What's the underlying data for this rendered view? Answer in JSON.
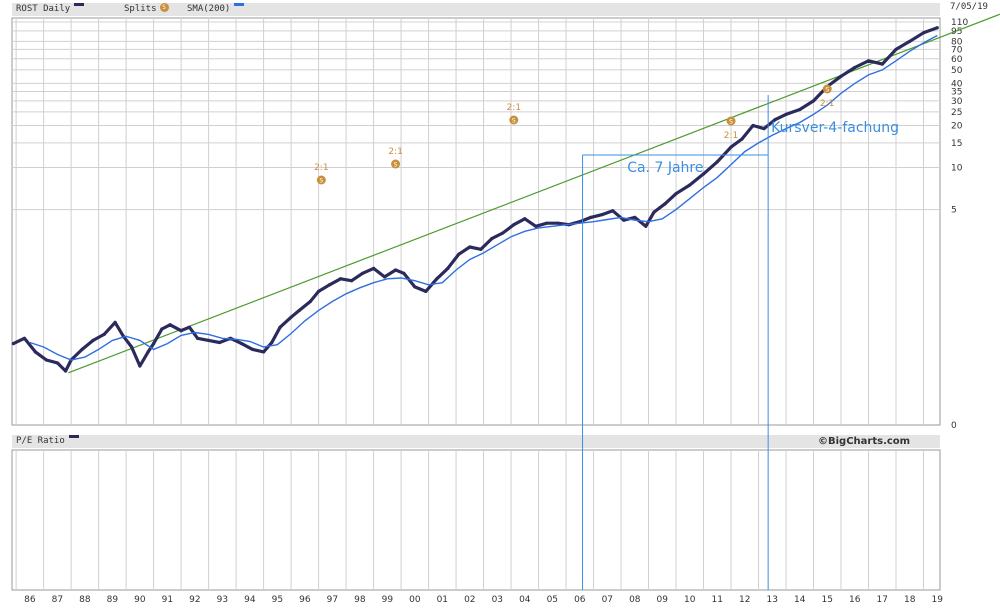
{
  "header": {
    "symbol_label": "ROST Daily",
    "splits_label": "Splits",
    "sma_label": "SMA(200)",
    "split_icon_glyph": "S",
    "date": "7/05/19"
  },
  "lower_panel": {
    "label": "P/E Ratio",
    "brand": "©BigCharts.com"
  },
  "colors": {
    "price": "#2b2a5c",
    "sma": "#2f6fe0",
    "trendline": "#4b9a2a",
    "annotation": "#3a8fe0",
    "split": "#c8903c"
  },
  "chart_data": {
    "type": "line",
    "title": "ROST Daily",
    "x_ticks": [
      "86",
      "87",
      "88",
      "89",
      "90",
      "91",
      "92",
      "93",
      "94",
      "95",
      "96",
      "97",
      "98",
      "99",
      "00",
      "01",
      "02",
      "03",
      "04",
      "05",
      "06",
      "07",
      "08",
      "09",
      "10",
      "11",
      "12",
      "13",
      "14",
      "15",
      "16",
      "17",
      "18",
      "19"
    ],
    "y_tick_labels": [
      "110",
      "95",
      "80",
      "70",
      "60",
      "50",
      "40",
      "35",
      "30",
      "25",
      "20",
      "15",
      "10",
      "5",
      "0"
    ],
    "y_scale": "log",
    "xlim": [
      1985.85,
      2019.6
    ],
    "grid": true,
    "series": [
      {
        "name": "ROST Daily",
        "x": [
          1985.9,
          1986.3,
          1986.7,
          1987.1,
          1987.5,
          1987.8,
          1988.0,
          1988.4,
          1988.8,
          1989.2,
          1989.6,
          1989.9,
          1990.2,
          1990.5,
          1990.8,
          1991.0,
          1991.3,
          1991.6,
          1992.0,
          1992.3,
          1992.6,
          1993.0,
          1993.4,
          1993.8,
          1994.2,
          1994.6,
          1995.0,
          1995.3,
          1995.6,
          1996.0,
          1996.3,
          1996.7,
          1997.0,
          1997.4,
          1997.8,
          1998.2,
          1998.6,
          1999.0,
          1999.4,
          1999.8,
          2000.1,
          2000.5,
          2000.9,
          2001.3,
          2001.7,
          2002.1,
          2002.5,
          2002.9,
          2003.3,
          2003.7,
          2004.1,
          2004.5,
          2004.9,
          2005.3,
          2005.7,
          2006.1,
          2006.5,
          2006.9,
          2007.3,
          2007.7,
          2008.1,
          2008.5,
          2008.9,
          2009.2,
          2009.6,
          2010.0,
          2010.5,
          2011.0,
          2011.5,
          2012.0,
          2012.4,
          2012.8,
          2013.2,
          2013.6,
          2014.0,
          2014.5,
          2015.0,
          2015.5,
          2016.0,
          2016.5,
          2017.0,
          2017.5,
          2018.0,
          2018.5,
          2019.0,
          2019.5
        ],
        "y": [
          0.55,
          0.6,
          0.48,
          0.42,
          0.4,
          0.35,
          0.42,
          0.5,
          0.58,
          0.64,
          0.78,
          0.62,
          0.52,
          0.38,
          0.48,
          0.55,
          0.7,
          0.75,
          0.68,
          0.72,
          0.6,
          0.58,
          0.56,
          0.6,
          0.55,
          0.5,
          0.48,
          0.56,
          0.72,
          0.85,
          0.95,
          1.1,
          1.3,
          1.45,
          1.6,
          1.55,
          1.75,
          1.9,
          1.65,
          1.85,
          1.75,
          1.4,
          1.3,
          1.6,
          1.9,
          2.4,
          2.7,
          2.6,
          3.1,
          3.4,
          3.9,
          4.3,
          3.8,
          4.0,
          4.0,
          3.9,
          4.1,
          4.4,
          4.6,
          4.9,
          4.2,
          4.4,
          3.8,
          4.8,
          5.5,
          6.5,
          7.5,
          9.0,
          11.0,
          14.0,
          16.0,
          20.0,
          19.0,
          22.0,
          24.0,
          26.0,
          30.0,
          38.0,
          45.0,
          52.0,
          58.0,
          55.0,
          70.0,
          80.0,
          92.0,
          100.0
        ]
      },
      {
        "name": "SMA(200)",
        "x": [
          1986.5,
          1987.0,
          1987.5,
          1988.0,
          1988.5,
          1989.0,
          1989.5,
          1990.0,
          1990.5,
          1991.0,
          1991.5,
          1992.0,
          1992.5,
          1993.0,
          1993.5,
          1994.0,
          1994.5,
          1995.0,
          1995.5,
          1996.0,
          1996.5,
          1997.0,
          1997.5,
          1998.0,
          1998.5,
          1999.0,
          1999.5,
          2000.0,
          2000.5,
          2001.0,
          2001.5,
          2002.0,
          2002.5,
          2003.0,
          2003.5,
          2004.0,
          2004.5,
          2005.0,
          2005.5,
          2006.0,
          2006.5,
          2007.0,
          2007.5,
          2008.0,
          2008.5,
          2009.0,
          2009.5,
          2010.0,
          2010.5,
          2011.0,
          2011.5,
          2012.0,
          2012.5,
          2013.0,
          2013.5,
          2014.0,
          2014.5,
          2015.0,
          2015.5,
          2016.0,
          2016.5,
          2017.0,
          2017.5,
          2018.0,
          2018.5,
          2019.0,
          2019.5
        ],
        "y": [
          0.56,
          0.52,
          0.46,
          0.42,
          0.44,
          0.5,
          0.58,
          0.62,
          0.58,
          0.5,
          0.55,
          0.63,
          0.66,
          0.64,
          0.6,
          0.59,
          0.57,
          0.52,
          0.54,
          0.65,
          0.8,
          0.95,
          1.1,
          1.25,
          1.38,
          1.5,
          1.6,
          1.62,
          1.55,
          1.45,
          1.5,
          1.85,
          2.2,
          2.45,
          2.8,
          3.2,
          3.5,
          3.7,
          3.8,
          3.9,
          4.0,
          4.1,
          4.25,
          4.4,
          4.2,
          4.1,
          4.3,
          5.0,
          6.0,
          7.2,
          8.5,
          10.5,
          13.0,
          15.0,
          17.0,
          19.0,
          21.0,
          24.0,
          28.0,
          34.0,
          40.0,
          46.0,
          50.0,
          58.0,
          68.0,
          78.0,
          88.0
        ]
      }
    ],
    "splits": [
      {
        "x": 1997.1,
        "label": "2:1"
      },
      {
        "x": 1999.8,
        "label": "2:1"
      },
      {
        "x": 2004.1,
        "label": "2:1"
      },
      {
        "x": 2012.0,
        "label": "2:1"
      },
      {
        "x": 2015.5,
        "label": "2:1"
      }
    ],
    "annotations": [
      {
        "text": "Ca. 7 Jahre"
      },
      {
        "text": "Kursver-4-fachung"
      }
    ]
  }
}
